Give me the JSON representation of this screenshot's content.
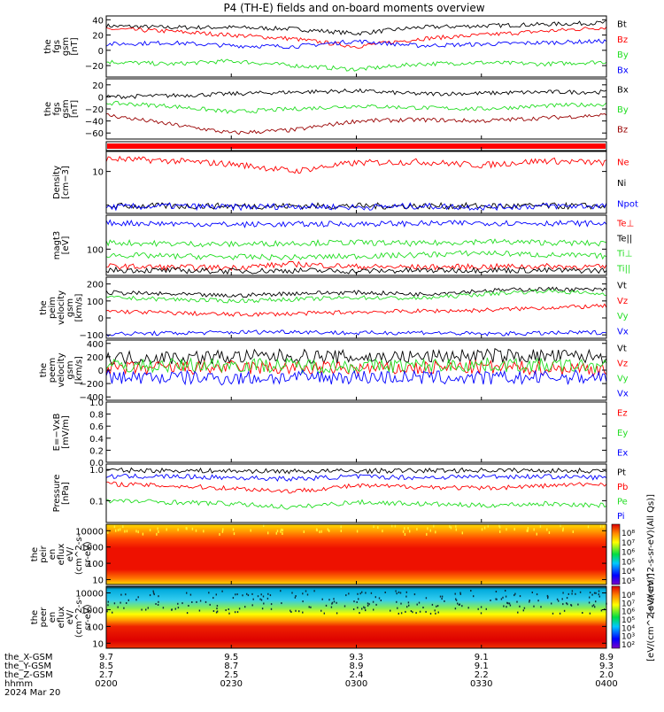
{
  "title": "P4 (TH-E) fields and on-board moments overview",
  "colors": {
    "black": "#000000",
    "red": "#ff0000",
    "green": "#22dd22",
    "blue": "#0000ff",
    "darkred": "#990000",
    "cyan": "#00cccc"
  },
  "time_axis": {
    "ticks": [
      "0200",
      "0230",
      "0300",
      "0330",
      "0400"
    ],
    "rows": [
      {
        "label": "the_X-GSM",
        "values": [
          "9.7",
          "9.5",
          "9.3",
          "9.1",
          "8.9"
        ]
      },
      {
        "label": "the_Y-GSM",
        "values": [
          "8.5",
          "8.7",
          "8.9",
          "9.1",
          "9.3"
        ]
      },
      {
        "label": "the_Z-GSM",
        "values": [
          "2.7",
          "2.5",
          "2.4",
          "2.2",
          "2.0"
        ]
      },
      {
        "label": "hhmm",
        "values": []
      }
    ],
    "date": "2024 Mar 20"
  },
  "chart_data": [
    {
      "type": "line",
      "ylabel": [
        "the",
        "fgs",
        "gsm",
        "[nT]"
      ],
      "ylim": [
        -35,
        45
      ],
      "yticks": [
        "40",
        "20",
        "0",
        "−20"
      ],
      "ytick_values": [
        40,
        20,
        0,
        -20
      ],
      "series": [
        {
          "name": "Bt",
          "color": "black",
          "values": [
            32,
            30,
            30,
            28,
            22,
            30,
            32,
            34,
            36
          ]
        },
        {
          "name": "Bz",
          "color": "red",
          "values": [
            28,
            25,
            20,
            15,
            5,
            15,
            20,
            25,
            30
          ]
        },
        {
          "name": "By",
          "color": "green",
          "values": [
            -15,
            -18,
            -14,
            -20,
            -25,
            -18,
            -16,
            -18,
            -15
          ]
        },
        {
          "name": "Bx",
          "color": "blue",
          "values": [
            8,
            10,
            6,
            5,
            12,
            6,
            8,
            10,
            12
          ]
        }
      ]
    },
    {
      "type": "line",
      "ylabel": [
        "the",
        "fgs",
        "gsm",
        "[nT]"
      ],
      "ylim": [
        -70,
        30
      ],
      "yticks": [
        "20",
        "0",
        "−20",
        "−40",
        "−60"
      ],
      "ytick_values": [
        20,
        0,
        -20,
        -40,
        -60
      ],
      "series": [
        {
          "name": "Bx",
          "color": "black",
          "values": [
            0,
            2,
            5,
            8,
            10,
            5,
            6,
            8,
            8
          ]
        },
        {
          "name": "By",
          "color": "green",
          "values": [
            -10,
            -15,
            -25,
            -20,
            -15,
            -18,
            -20,
            -15,
            -12
          ]
        },
        {
          "name": "Bz",
          "color": "darkred",
          "values": [
            -30,
            -45,
            -60,
            -55,
            -40,
            -38,
            -40,
            -35,
            -30
          ]
        }
      ]
    },
    {
      "type": "line",
      "ylabel": [],
      "note": "flag bar",
      "series": [
        {
          "name": "",
          "color": "red",
          "values": [
            1,
            1,
            1,
            1,
            1,
            1,
            1,
            1,
            1
          ]
        }
      ]
    },
    {
      "type": "line",
      "log": true,
      "ylabel": [
        "Density",
        "[cm−3]"
      ],
      "ylim": [
        1,
        30
      ],
      "yticks": [
        "10"
      ],
      "ytick_values": [
        10
      ],
      "series": [
        {
          "name": "Ne",
          "color": "red",
          "values": [
            20,
            18,
            15,
            10,
            16,
            17,
            14,
            18,
            16
          ]
        },
        {
          "name": "Ni",
          "color": "black",
          "values": [
            1.5,
            1.5,
            1.5,
            1.5,
            1.5,
            1.5,
            1.5,
            1.5,
            1.5
          ]
        },
        {
          "name": "Npot",
          "color": "blue",
          "values": [
            1.4,
            1.5,
            1.4,
            1.5,
            1.4,
            1.5,
            1.4,
            1.5,
            1.5
          ]
        }
      ]
    },
    {
      "type": "line",
      "log": true,
      "ylabel": [
        "magt3",
        "[eV]"
      ],
      "ylim": [
        20,
        800
      ],
      "yticks": [
        "100"
      ],
      "ytick_values": [
        100
      ],
      "series": [
        {
          "name": "Te⊥",
          "color": "red",
          "values": [
            35,
            33,
            32,
            40,
            34,
            33,
            34,
            35,
            33
          ]
        },
        {
          "name": "Te||",
          "color": "black",
          "values": [
            28,
            27,
            26,
            27,
            26,
            27,
            28,
            27,
            27
          ]
        },
        {
          "name": "Ti⊥",
          "color": "green",
          "values": [
            150,
            140,
            135,
            145,
            150,
            140,
            160,
            150,
            140
          ]
        },
        {
          "name": "Ti||",
          "color": "green",
          "values": [
            70,
            65,
            62,
            60,
            65,
            70,
            80,
            70,
            65
          ]
        },
        {
          "name": "",
          "color": "blue",
          "values": [
            500,
            480,
            450,
            460,
            470,
            480,
            500,
            490,
            480
          ]
        }
      ]
    },
    {
      "type": "line",
      "ylabel": [
        "the",
        "peim",
        "velocity",
        "gsm",
        "[km/s]"
      ],
      "ylim": [
        -120,
        240
      ],
      "yticks": [
        "200",
        "100",
        "0",
        "−100"
      ],
      "ytick_values": [
        200,
        100,
        0,
        -100
      ],
      "series": [
        {
          "name": "Vt",
          "color": "black",
          "values": [
            150,
            140,
            130,
            145,
            150,
            140,
            160,
            170,
            165
          ]
        },
        {
          "name": "Vz",
          "color": "red",
          "values": [
            40,
            30,
            20,
            25,
            35,
            40,
            45,
            60,
            70
          ]
        },
        {
          "name": "Vy",
          "color": "green",
          "values": [
            120,
            110,
            100,
            110,
            120,
            115,
            140,
            160,
            140
          ]
        },
        {
          "name": "Vx",
          "color": "blue",
          "values": [
            -95,
            -90,
            -85,
            -80,
            -90,
            -85,
            -95,
            -90,
            -85
          ]
        }
      ]
    },
    {
      "type": "line",
      "ylabel": [
        "the",
        "peem",
        "velocity",
        "gsm",
        "[km/s]"
      ],
      "ylim": [
        -450,
        450
      ],
      "yticks": [
        "400",
        "200",
        "0",
        "−200",
        "−400"
      ],
      "ytick_values": [
        400,
        200,
        0,
        -200,
        -400
      ],
      "series": [
        {
          "name": "Vt",
          "color": "black",
          "values": [
            180,
            190,
            200,
            210,
            190,
            200,
            220,
            210,
            200
          ]
        },
        {
          "name": "Vz",
          "color": "red",
          "values": [
            20,
            30,
            40,
            30,
            20,
            30,
            40,
            30,
            20
          ]
        },
        {
          "name": "Vy",
          "color": "green",
          "values": [
            60,
            70,
            80,
            70,
            60,
            70,
            80,
            70,
            60
          ]
        },
        {
          "name": "Vx",
          "color": "blue",
          "values": [
            -100,
            -110,
            -120,
            -110,
            -100,
            -110,
            -120,
            -110,
            -100
          ]
        }
      ]
    },
    {
      "type": "line",
      "ylabel": [
        "E=−VxB",
        "[mV/m]"
      ],
      "ylim": [
        0,
        1
      ],
      "yticks": [
        "1.0",
        "0.8",
        "0.6",
        "0.4",
        "0.2",
        "0.0"
      ],
      "ytick_values": [
        1,
        0.8,
        0.6,
        0.4,
        0.2,
        0
      ],
      "series": [
        {
          "name": "Ez",
          "color": "red",
          "values": []
        },
        {
          "name": "Ey",
          "color": "green",
          "values": []
        },
        {
          "name": "Ex",
          "color": "blue",
          "values": []
        }
      ]
    },
    {
      "type": "line",
      "log": true,
      "ylabel": [
        "Pressure",
        "[nPa]"
      ],
      "ylim": [
        0.02,
        1.5
      ],
      "yticks": [
        "1.0",
        "0.1"
      ],
      "ytick_values": [
        1,
        0.1
      ],
      "series": [
        {
          "name": "Pt",
          "color": "black",
          "values": [
            0.95,
            0.93,
            0.9,
            0.88,
            0.9,
            0.92,
            0.95,
            0.93,
            0.9
          ]
        },
        {
          "name": "Pb",
          "color": "red",
          "values": [
            0.35,
            0.3,
            0.25,
            0.2,
            0.3,
            0.28,
            0.25,
            0.3,
            0.35
          ]
        },
        {
          "name": "Pe",
          "color": "green",
          "values": [
            0.1,
            0.09,
            0.08,
            0.06,
            0.09,
            0.08,
            0.07,
            0.08,
            0.07
          ]
        },
        {
          "name": "Pi",
          "color": "blue",
          "values": [
            0.6,
            0.6,
            0.55,
            0.5,
            0.6,
            0.55,
            0.6,
            0.6,
            0.55
          ]
        }
      ]
    },
    {
      "type": "heatmap",
      "ylabel": [
        "the",
        "peir",
        "en",
        "eflux",
        "eV/",
        "(cm^2-s-",
        "sr-eV)"
      ],
      "ylim": [
        5,
        25000
      ],
      "yticks": [
        "10000",
        "1000",
        "100",
        "10"
      ],
      "ytick_values": [
        10000,
        1000,
        100,
        10
      ],
      "colorbar": {
        "ticks": [
          "10⁸",
          "10⁷",
          "10⁶",
          "10⁵",
          "10⁴",
          "10³"
        ],
        "label": "[eV/(cm^2-s-sr-eV)(All Qs)]"
      }
    },
    {
      "type": "heatmap",
      "ylabel": [
        "the",
        "peer",
        "en",
        "eflux",
        "eV/",
        "(cm^2-s-",
        "sr-eV)"
      ],
      "ylim": [
        5,
        25000
      ],
      "yticks": [
        "10000",
        "1000",
        "100",
        "10"
      ],
      "ytick_values": [
        10000,
        1000,
        100,
        10
      ],
      "colorbar": {
        "ticks": [
          "10⁸",
          "10⁷",
          "10⁶",
          "10⁵",
          "10⁴",
          "10³",
          "10²"
        ],
        "label": "[eV/(cm^2-s-sr-eV)]"
      }
    }
  ]
}
